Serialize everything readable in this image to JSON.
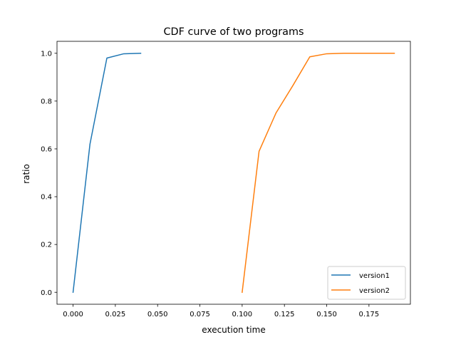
{
  "chart_data": {
    "type": "line",
    "title": "CDF curve of two programs",
    "xlabel": "execution time",
    "ylabel": "ratio",
    "xlim": [
      -0.0095,
      0.1995
    ],
    "ylim": [
      -0.05,
      1.05
    ],
    "xticks": [
      0.0,
      0.025,
      0.05,
      0.075,
      0.1,
      0.125,
      0.15,
      0.175
    ],
    "xtick_labels": [
      "0.000",
      "0.025",
      "0.050",
      "0.075",
      "0.100",
      "0.125",
      "0.150",
      "0.175"
    ],
    "yticks": [
      0.0,
      0.2,
      0.4,
      0.6,
      0.8,
      1.0
    ],
    "ytick_labels": [
      "0.0",
      "0.2",
      "0.4",
      "0.6",
      "0.8",
      "1.0"
    ],
    "grid": false,
    "legend_position": "bottom-right",
    "series": [
      {
        "name": "version1",
        "color": "#1f77b4",
        "x": [
          0.0,
          0.01,
          0.02,
          0.03,
          0.04
        ],
        "y": [
          0.0,
          0.62,
          0.98,
          0.998,
          1.0
        ]
      },
      {
        "name": "version2",
        "color": "#ff7f0e",
        "x": [
          0.1,
          0.11,
          0.12,
          0.13,
          0.14,
          0.15,
          0.16,
          0.17,
          0.18,
          0.19
        ],
        "y": [
          0.0,
          0.59,
          0.75,
          0.865,
          0.985,
          0.998,
          1.0,
          1.0,
          1.0,
          1.0
        ]
      }
    ]
  }
}
